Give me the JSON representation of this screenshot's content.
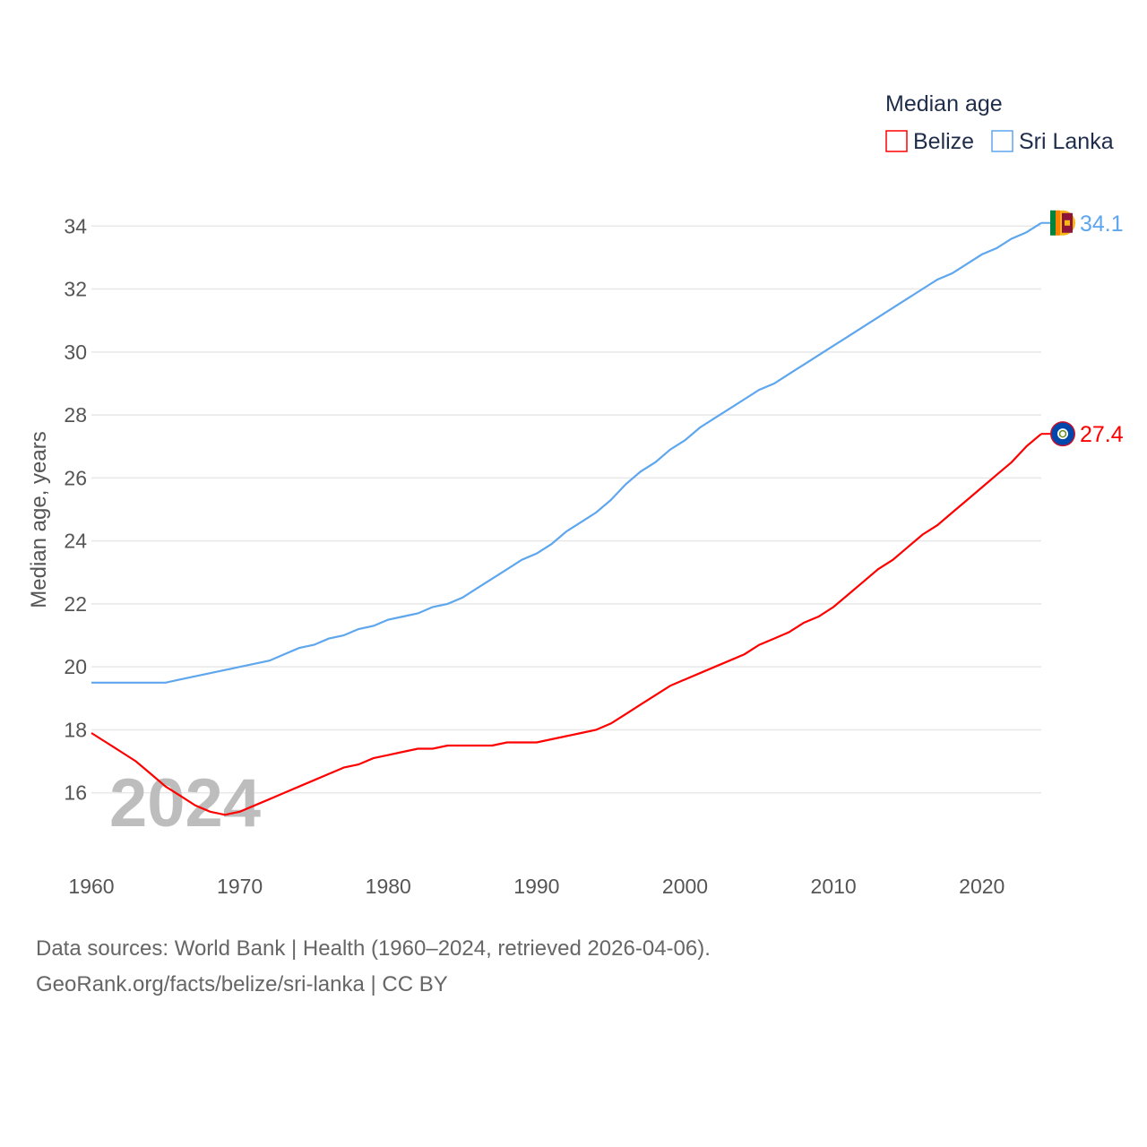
{
  "chart_data": {
    "type": "line",
    "title": "",
    "xlabel": "",
    "ylabel": "Median age, years",
    "xlim": [
      1960,
      2024
    ],
    "ylim": [
      14,
      36
    ],
    "x_ticks": [
      1960,
      1970,
      1980,
      1990,
      2000,
      2010,
      2020
    ],
    "y_ticks": [
      16,
      18,
      20,
      22,
      24,
      26,
      28,
      30,
      32,
      34
    ],
    "grid": true,
    "legend": {
      "title": "Median age",
      "placement": "top-right"
    },
    "watermark_year": "2024",
    "x": [
      1960,
      1961,
      1962,
      1963,
      1964,
      1965,
      1966,
      1967,
      1968,
      1969,
      1970,
      1971,
      1972,
      1973,
      1974,
      1975,
      1976,
      1977,
      1978,
      1979,
      1980,
      1981,
      1982,
      1983,
      1984,
      1985,
      1986,
      1987,
      1988,
      1989,
      1990,
      1991,
      1992,
      1993,
      1994,
      1995,
      1996,
      1997,
      1998,
      1999,
      2000,
      2001,
      2002,
      2003,
      2004,
      2005,
      2006,
      2007,
      2008,
      2009,
      2010,
      2011,
      2012,
      2013,
      2014,
      2015,
      2016,
      2017,
      2018,
      2019,
      2020,
      2021,
      2022,
      2023,
      2024
    ],
    "series": [
      {
        "name": "Belize",
        "color": "#ff0000",
        "end_label": "27.4",
        "flag": "belize-flag",
        "values": [
          17.9,
          17.6,
          17.3,
          17.0,
          16.6,
          16.2,
          15.9,
          15.6,
          15.4,
          15.3,
          15.4,
          15.6,
          15.8,
          16.0,
          16.2,
          16.4,
          16.6,
          16.8,
          16.9,
          17.1,
          17.2,
          17.3,
          17.4,
          17.4,
          17.5,
          17.5,
          17.5,
          17.5,
          17.6,
          17.6,
          17.6,
          17.7,
          17.8,
          17.9,
          18.0,
          18.2,
          18.5,
          18.8,
          19.1,
          19.4,
          19.6,
          19.8,
          20.0,
          20.2,
          20.4,
          20.7,
          20.9,
          21.1,
          21.4,
          21.6,
          21.9,
          22.3,
          22.7,
          23.1,
          23.4,
          23.8,
          24.2,
          24.5,
          24.9,
          25.3,
          25.7,
          26.1,
          26.5,
          27.0,
          27.4
        ]
      },
      {
        "name": "Sri Lanka",
        "color": "#5ea6ed",
        "end_label": "34.1",
        "flag": "sri-lanka-flag",
        "values": [
          19.5,
          19.5,
          19.5,
          19.5,
          19.5,
          19.5,
          19.6,
          19.7,
          19.8,
          19.9,
          20.0,
          20.1,
          20.2,
          20.4,
          20.6,
          20.7,
          20.9,
          21.0,
          21.2,
          21.3,
          21.5,
          21.6,
          21.7,
          21.9,
          22.0,
          22.2,
          22.5,
          22.8,
          23.1,
          23.4,
          23.6,
          23.9,
          24.3,
          24.6,
          24.9,
          25.3,
          25.8,
          26.2,
          26.5,
          26.9,
          27.2,
          27.6,
          27.9,
          28.2,
          28.5,
          28.8,
          29.0,
          29.3,
          29.6,
          29.9,
          30.2,
          30.5,
          30.8,
          31.1,
          31.4,
          31.7,
          32.0,
          32.3,
          32.5,
          32.8,
          33.1,
          33.3,
          33.6,
          33.8,
          34.1
        ]
      }
    ]
  },
  "footer": {
    "line1": "Data sources: World Bank | Health (1960–2024, retrieved 2026-04-06).",
    "line2": "GeoRank.org/facts/belize/sri-lanka | CC BY"
  }
}
